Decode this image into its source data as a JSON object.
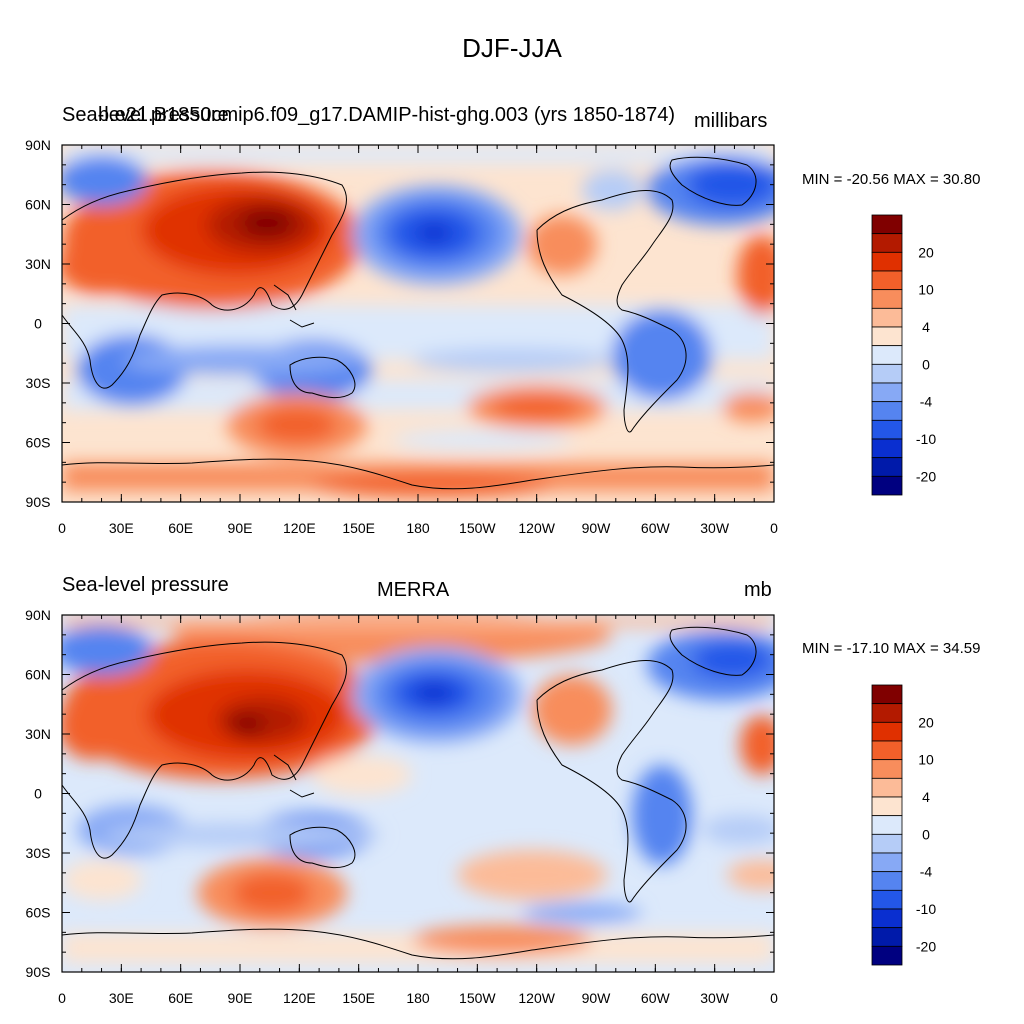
{
  "main_title": "DJF-JJA",
  "panels": [
    {
      "left_string": "Sea-level pressure",
      "center_string": "b.e21.B1850cmip6.f09_g17.DAMIP-hist-ghg.003 (yrs 1850-1874)",
      "right_string": "millibars",
      "minmax": "MIN = -20.56 MAX =  30.80"
    },
    {
      "left_string": "Sea-level pressure",
      "center_string": "MERRA",
      "right_string": "mb",
      "minmax": "MIN = -17.10 MAX =  34.59"
    }
  ],
  "axes": {
    "lat_labels": [
      "90N",
      "60N",
      "30N",
      "0",
      "30S",
      "60S",
      "90S"
    ],
    "lon_labels": [
      "0",
      "30E",
      "60E",
      "90E",
      "120E",
      "150E",
      "180",
      "150W",
      "120W",
      "90W",
      "60W",
      "30W",
      "0"
    ]
  },
  "colorbar": {
    "labels": [
      "20",
      "10",
      "4",
      "0",
      "-4",
      "-10",
      "-20"
    ],
    "colors": [
      "#800000",
      "#b31a00",
      "#e03000",
      "#f2602a",
      "#f88d5c",
      "#fcbb98",
      "#fde4d0",
      "#dce9fb",
      "#b5ccf7",
      "#87a9f5",
      "#5584f0",
      "#2357e8",
      "#0a2fd0",
      "#001aaa",
      "#000080"
    ]
  },
  "colors": {
    "ocean_neutral": "#fde4d0",
    "coast": "#000000"
  }
}
